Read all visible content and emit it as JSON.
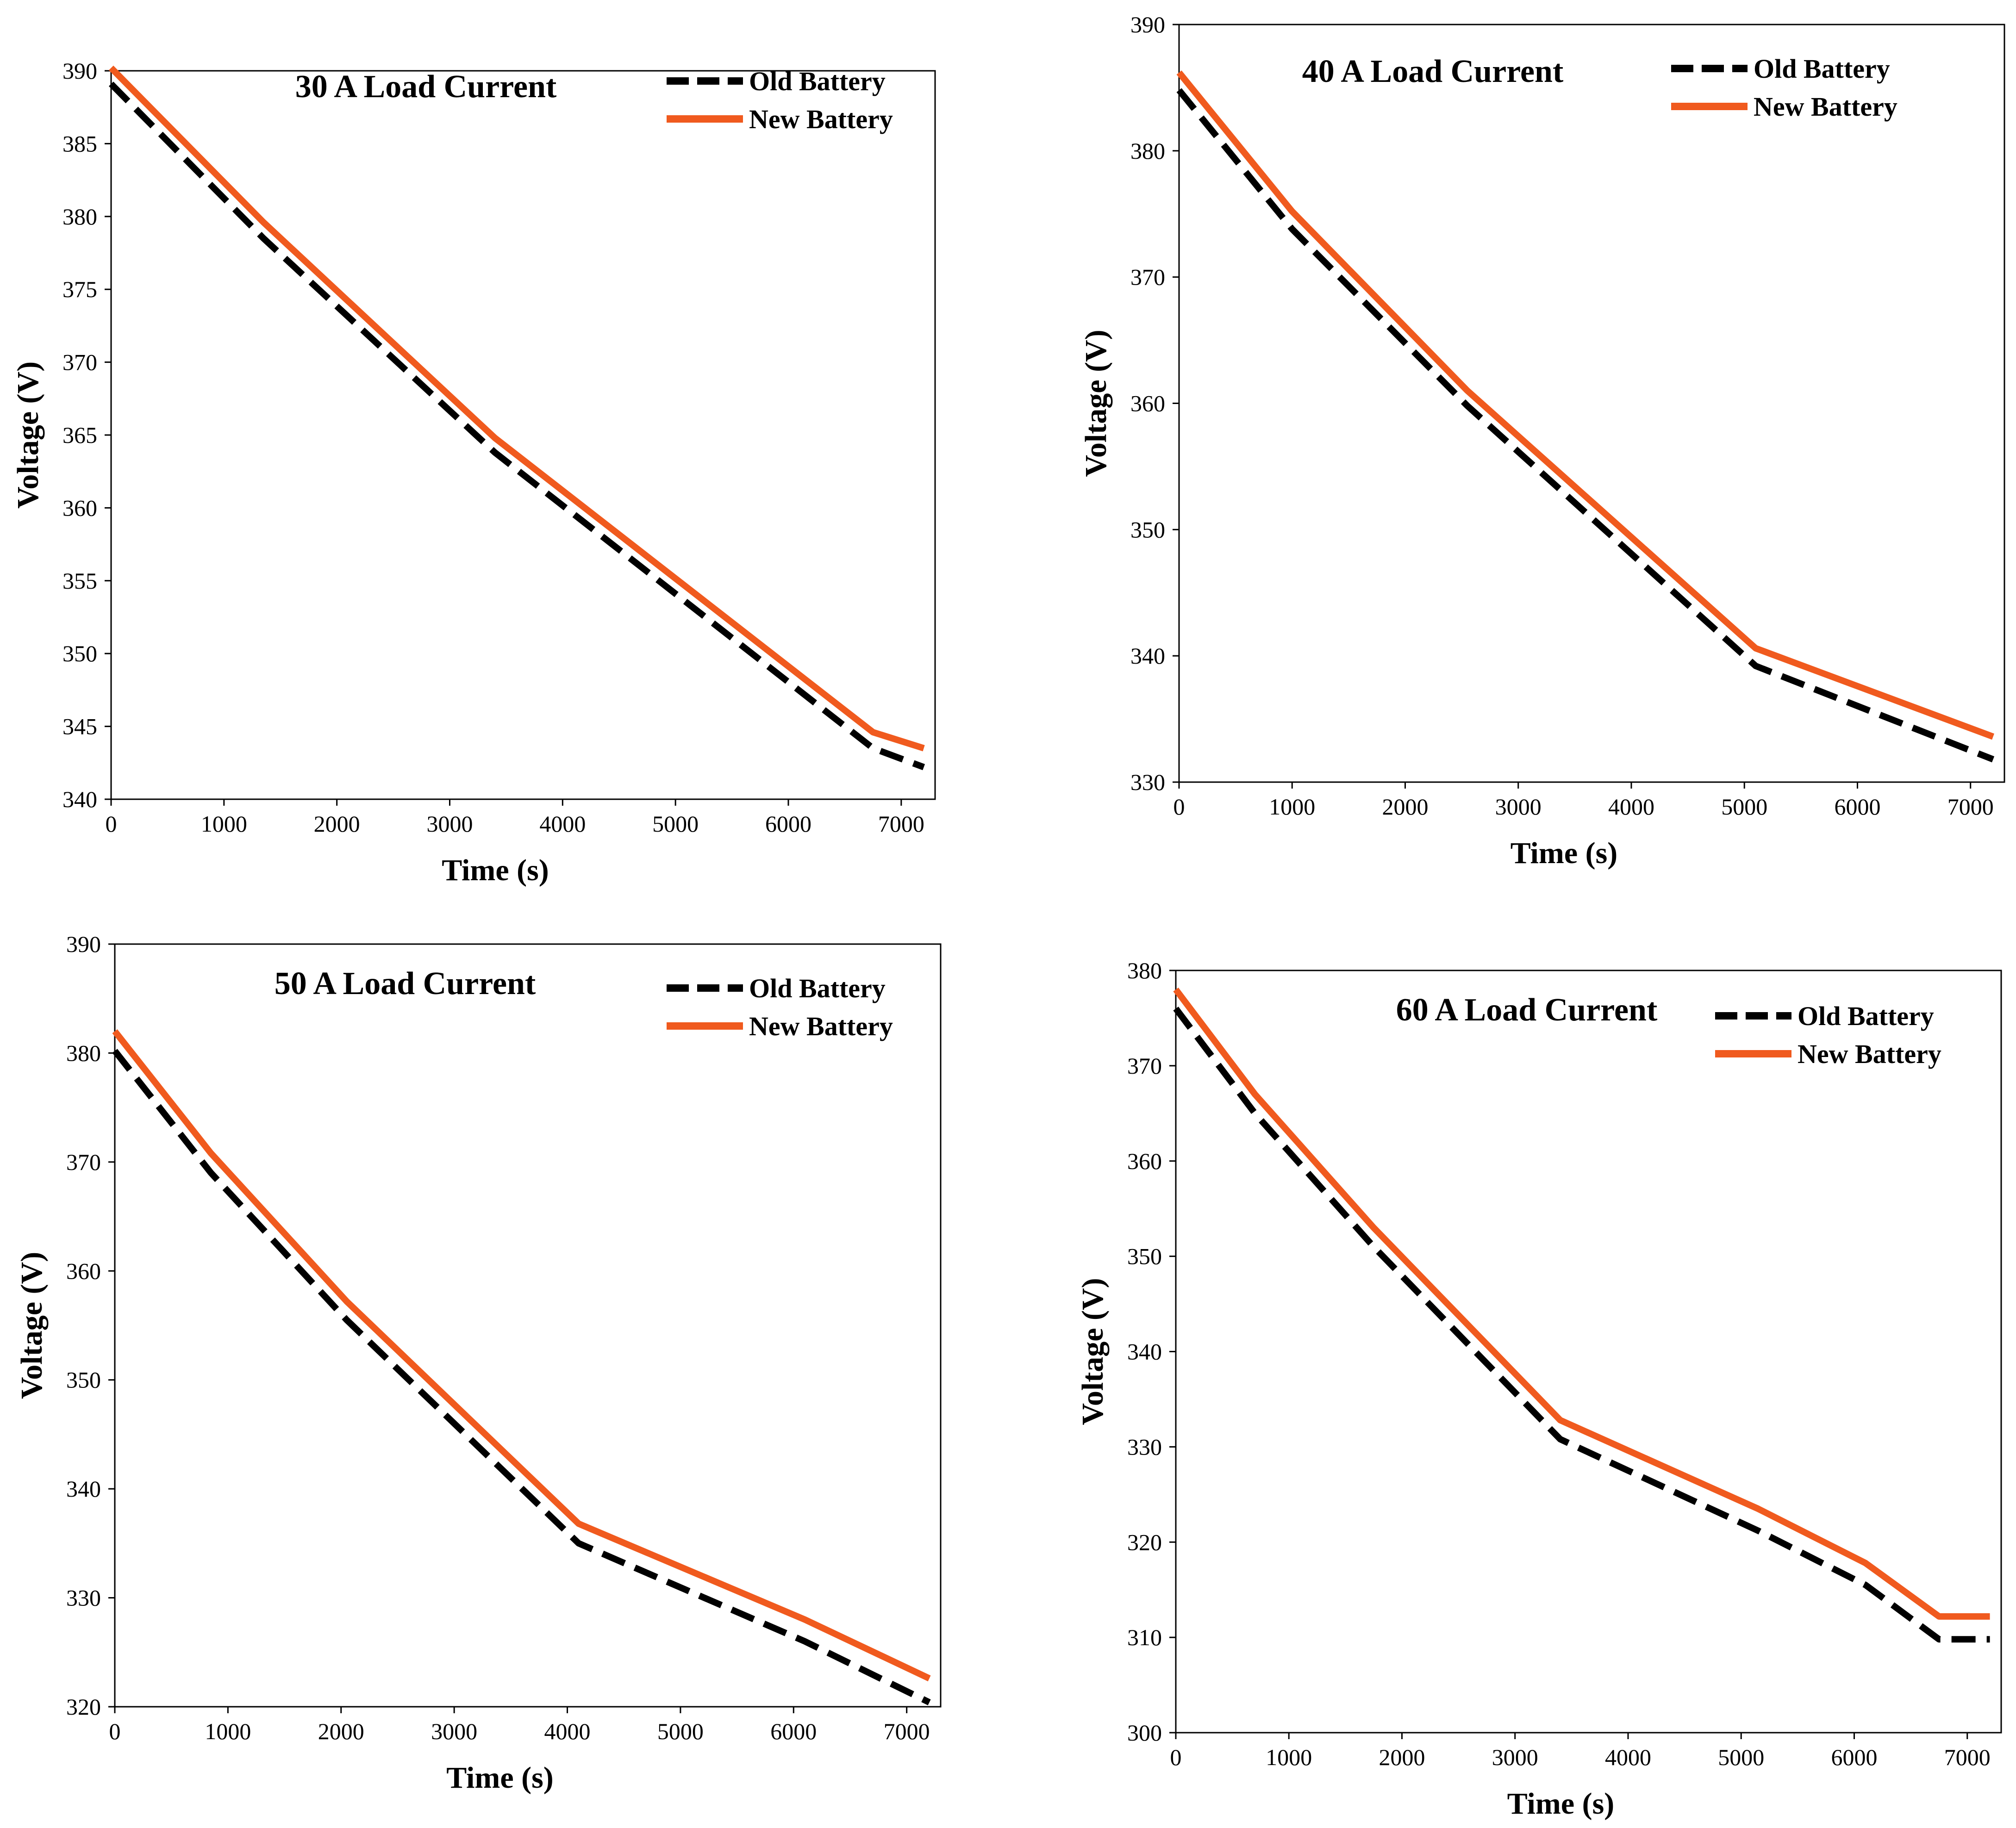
{
  "chart_data": [
    {
      "type": "line",
      "title": "30 A Load Current",
      "xlabel": "Time (s)",
      "ylabel": "Voltage (V)",
      "xlim": [
        0,
        7300
      ],
      "ylim": [
        340,
        390
      ],
      "xticks": [
        0,
        1000,
        2000,
        3000,
        4000,
        5000,
        6000,
        7000
      ],
      "yticks": [
        340,
        345,
        350,
        355,
        360,
        365,
        370,
        375,
        380,
        385,
        390
      ],
      "grid": false,
      "legend_position": "top-right",
      "series": [
        {
          "name": "Old Battery",
          "color": "#000000",
          "style": "dashed",
          "x": [
            0,
            1350,
            3400,
            6750,
            7200
          ],
          "y": [
            389.1,
            378.5,
            363.8,
            343.5,
            342.2
          ]
        },
        {
          "name": "New Battery",
          "color": "#f05a1e",
          "style": "solid",
          "x": [
            0,
            1350,
            3400,
            6750,
            7200
          ],
          "y": [
            390.2,
            379.6,
            364.8,
            344.6,
            343.5
          ]
        }
      ]
    },
    {
      "type": "line",
      "title": "40 A Load Current",
      "xlabel": "Time (s)",
      "ylabel": "Voltage (V)",
      "xlim": [
        0,
        7300
      ],
      "ylim": [
        330,
        390
      ],
      "xticks": [
        0,
        1000,
        2000,
        3000,
        4000,
        5000,
        6000,
        7000
      ],
      "yticks": [
        330,
        340,
        350,
        360,
        370,
        380,
        390
      ],
      "grid": false,
      "legend_position": "top-right",
      "series": [
        {
          "name": "Old Battery",
          "color": "#000000",
          "style": "dashed",
          "x": [
            0,
            1000,
            2550,
            5100,
            7200
          ],
          "y": [
            384.8,
            373.8,
            359.8,
            339.2,
            331.8
          ]
        },
        {
          "name": "New Battery",
          "color": "#f05a1e",
          "style": "solid",
          "x": [
            0,
            1000,
            2550,
            5100,
            7200
          ],
          "y": [
            386.2,
            375.2,
            361.0,
            340.6,
            333.6
          ]
        }
      ]
    },
    {
      "type": "line",
      "title": "50 A Load Current",
      "xlabel": "Time (s)",
      "ylabel": "Voltage (V)",
      "xlim": [
        0,
        7300
      ],
      "ylim": [
        320,
        390
      ],
      "xticks": [
        0,
        1000,
        2000,
        3000,
        4000,
        5000,
        6000,
        7000
      ],
      "yticks": [
        320,
        330,
        340,
        350,
        360,
        370,
        380,
        390
      ],
      "grid": false,
      "legend_position": "top-right",
      "series": [
        {
          "name": "Old Battery",
          "color": "#000000",
          "style": "dashed",
          "x": [
            0,
            850,
            2050,
            4100,
            6100,
            7200
          ],
          "y": [
            380.2,
            369.0,
            355.5,
            335.0,
            326.0,
            320.4
          ]
        },
        {
          "name": "New Battery",
          "color": "#f05a1e",
          "style": "solid",
          "x": [
            0,
            850,
            2050,
            4100,
            6100,
            7200
          ],
          "y": [
            382.0,
            370.8,
            357.2,
            336.8,
            328.0,
            322.6
          ]
        }
      ]
    },
    {
      "type": "line",
      "title": "60 A Load Current",
      "xlabel": "Time (s)",
      "ylabel": "Voltage (V)",
      "xlim": [
        0,
        7300
      ],
      "ylim": [
        300,
        380
      ],
      "xticks": [
        0,
        1000,
        2000,
        3000,
        4000,
        5000,
        6000,
        7000
      ],
      "yticks": [
        300,
        310,
        320,
        330,
        340,
        350,
        360,
        370,
        380
      ],
      "grid": false,
      "legend_position": "top-right",
      "series": [
        {
          "name": "Old Battery",
          "color": "#000000",
          "style": "dashed",
          "x": [
            0,
            700,
            1750,
            3400,
            5150,
            6100,
            6750,
            7200
          ],
          "y": [
            376.0,
            365.0,
            351.0,
            330.8,
            321.2,
            315.5,
            309.8,
            309.8
          ]
        },
        {
          "name": "New Battery",
          "color": "#f05a1e",
          "style": "solid",
          "x": [
            0,
            700,
            1750,
            3400,
            5150,
            6100,
            6750,
            7200
          ],
          "y": [
            378.0,
            367.0,
            353.0,
            332.8,
            323.5,
            317.8,
            312.2,
            312.2
          ]
        }
      ]
    }
  ]
}
